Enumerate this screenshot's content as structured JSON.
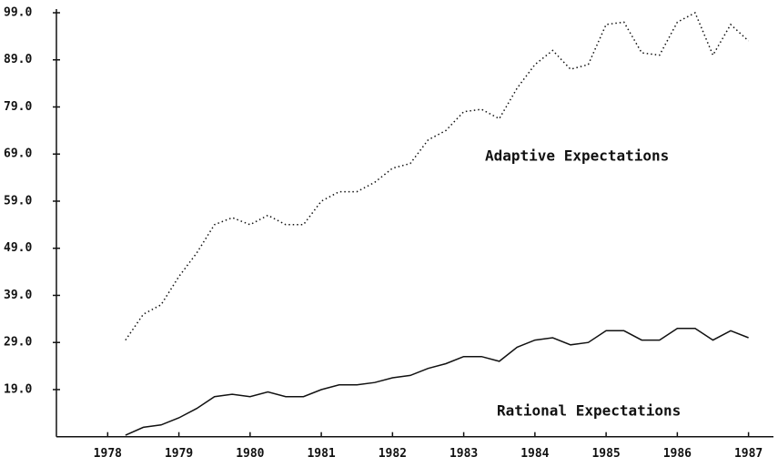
{
  "chart_data": {
    "type": "line",
    "annotations": [
      "Adaptive Expectations",
      "Rational Expectations"
    ],
    "x": [
      1978.25,
      1978.5,
      1978.75,
      1979.0,
      1979.25,
      1979.5,
      1979.75,
      1980.0,
      1980.25,
      1980.5,
      1980.75,
      1981.0,
      1981.25,
      1981.5,
      1981.75,
      1982.0,
      1982.25,
      1982.5,
      1982.75,
      1983.0,
      1983.25,
      1983.5,
      1983.75,
      1984.0,
      1984.25,
      1984.5,
      1984.75,
      1985.0,
      1985.25,
      1985.5,
      1985.75,
      1986.0,
      1986.25,
      1986.5,
      1986.75,
      1987.0
    ],
    "series": [
      {
        "name": "Adaptive Expectations",
        "color": "#111111",
        "style": "dotted",
        "values": [
          29.5,
          35,
          37,
          43,
          48,
          54,
          55.5,
          54,
          56,
          54,
          54,
          59,
          61,
          61,
          63,
          66,
          67,
          72,
          74,
          78,
          78.5,
          76.5,
          83,
          88,
          91,
          87,
          88,
          96.5,
          97,
          90.5,
          90,
          97,
          99,
          90,
          96.5,
          93
        ]
      },
      {
        "name": "Rational Expectations",
        "color": "#111111",
        "style": "solid",
        "values": [
          9.3,
          11,
          11.5,
          13,
          15,
          17.5,
          18,
          17.5,
          18.5,
          17.5,
          17.5,
          19,
          20,
          20,
          20.5,
          21.5,
          22,
          23.5,
          24.5,
          26,
          26,
          25,
          28,
          29.5,
          30,
          28.5,
          29,
          31.5,
          31.5,
          29.5,
          29.5,
          32,
          32,
          29.5,
          31.5,
          30
        ]
      }
    ],
    "xlim": [
      1977.28,
      1987.35
    ],
    "xticks": [
      1978,
      1979,
      1980,
      1981,
      1982,
      1983,
      1984,
      1985,
      1986,
      1987
    ],
    "ylim": [
      9,
      99
    ],
    "yticks": [
      {
        "value": 19,
        "label": "19.0"
      },
      {
        "value": 29,
        "label": "29.0"
      },
      {
        "value": 39,
        "label": "39.0"
      },
      {
        "value": 49,
        "label": "49.0"
      },
      {
        "value": 59,
        "label": "59.0"
      },
      {
        "value": 69,
        "label": "69.0"
      },
      {
        "value": 79,
        "label": "79.0"
      },
      {
        "value": 89,
        "label": "89.0"
      },
      {
        "value": 99,
        "label": "99.0"
      }
    ]
  }
}
